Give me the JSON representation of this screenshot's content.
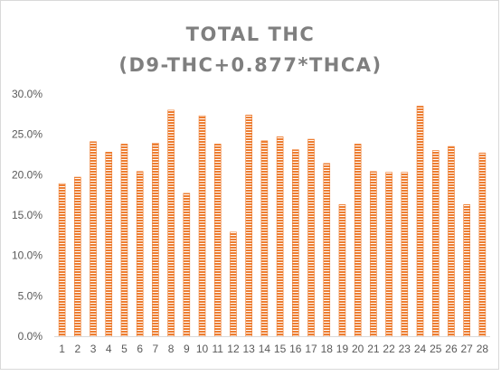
{
  "chart_data": {
    "type": "bar",
    "title_lines": [
      "TOTAL THC",
      "(D9-THC+0.877*THCA)"
    ],
    "xlabel": "",
    "ylabel": "",
    "ylim": [
      0,
      0.3
    ],
    "y_ticks": [
      0,
      0.05,
      0.1,
      0.15,
      0.2,
      0.25,
      0.3
    ],
    "y_tick_labels": [
      "0.0%",
      "5.0%",
      "10.0%",
      "15.0%",
      "20.0%",
      "25.0%",
      "30.0%"
    ],
    "categories": [
      "1",
      "2",
      "3",
      "4",
      "5",
      "6",
      "7",
      "8",
      "9",
      "10",
      "11",
      "12",
      "13",
      "14",
      "15",
      "16",
      "17",
      "18",
      "19",
      "20",
      "21",
      "22",
      "23",
      "24",
      "25",
      "26",
      "27",
      "28"
    ],
    "values": [
      0.189,
      0.197,
      0.241,
      0.228,
      0.238,
      0.204,
      0.239,
      0.28,
      0.177,
      0.273,
      0.238,
      0.129,
      0.274,
      0.242,
      0.247,
      0.231,
      0.244,
      0.214,
      0.163,
      0.238,
      0.204,
      0.203,
      0.203,
      0.285,
      0.23,
      0.235,
      0.163,
      0.227
    ],
    "grid": false,
    "legend": "none",
    "bar_color": "#ed7d31",
    "bar_pattern": "horizontal-lines"
  }
}
